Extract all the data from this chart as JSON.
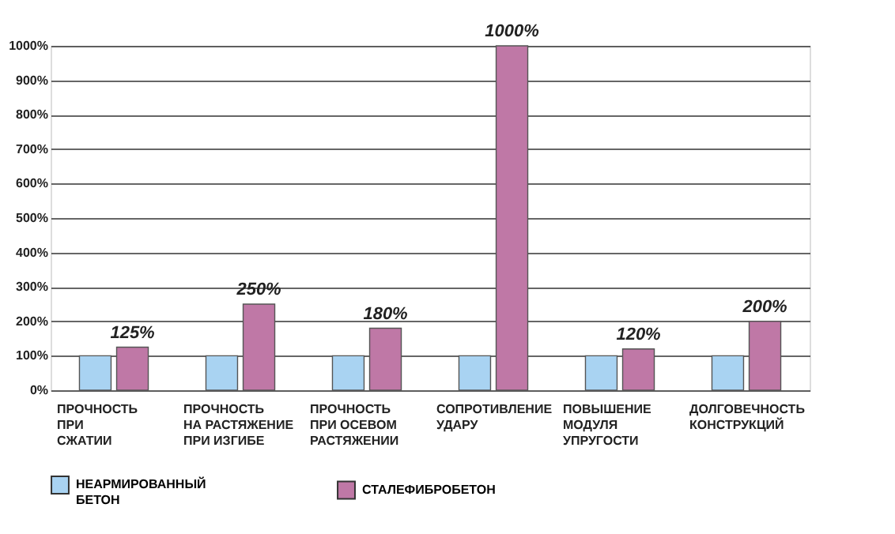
{
  "chart_data": {
    "type": "bar",
    "categories": [
      "ПРОЧНОСТЬ\nПРИ\nСЖАТИИ",
      "ПРОЧНОСТЬ\nНА РАСТЯЖЕНИЕ\nПРИ ИЗГИБЕ",
      "ПРОЧНОСТЬ\nПРИ ОСЕВОМ\nРАСТЯЖЕНИИ",
      "СОПРОТИВЛЕНИЕ\nУДАРУ",
      "ПОВЫШЕНИЕ\nМОДУЛЯ\nУПРУГОСТИ",
      "ДОЛГОВЕЧНОСТЬ\nКОНСТРУКЦИЙ"
    ],
    "series": [
      {
        "name": "НЕАРМИРОВАННЫЙ\nБЕТОН",
        "color": "#a9d3f2",
        "values": [
          100,
          100,
          100,
          100,
          100,
          100
        ]
      },
      {
        "name": "СТАЛЕФИБРОБЕТОН",
        "color": "#bf78a6",
        "values": [
          125,
          250,
          180,
          1000,
          120,
          200
        ],
        "value_labels": [
          "125%",
          "250%",
          "180%",
          "1000%",
          "120%",
          "200%"
        ]
      }
    ],
    "ylim": [
      0,
      1000
    ],
    "yticks": [
      {
        "value": 0,
        "label": "0%"
      },
      {
        "value": 100,
        "label": "100%"
      },
      {
        "value": 200,
        "label": "200%"
      },
      {
        "value": 300,
        "label": "300%"
      },
      {
        "value": 400,
        "label": "400%"
      },
      {
        "value": 500,
        "label": "500%"
      },
      {
        "value": 600,
        "label": "600%"
      },
      {
        "value": 700,
        "label": "700%"
      },
      {
        "value": 800,
        "label": "800%"
      },
      {
        "value": 900,
        "label": "900%"
      },
      {
        "value": 1000,
        "label": "1000%"
      }
    ],
    "grid": "y",
    "legend": "bottom left"
  }
}
